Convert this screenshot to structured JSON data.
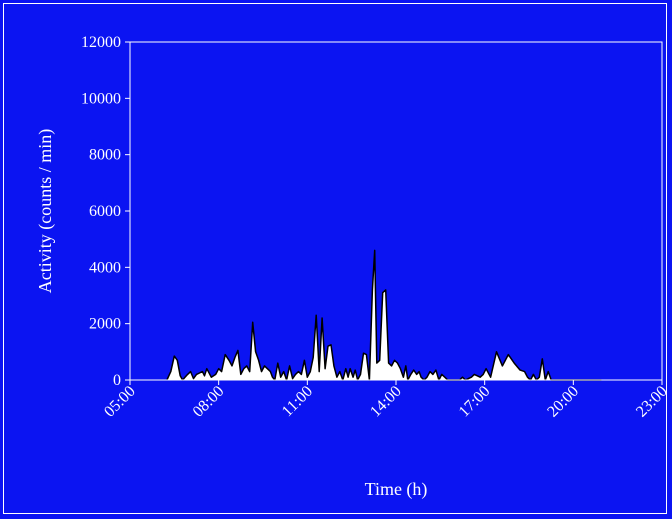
{
  "colors": {
    "background": "#0b14f2",
    "plot_area": "#0b14f2",
    "axis": "#ffffff",
    "fill": "#ffffff",
    "line": "#000000"
  },
  "chart_data": {
    "type": "area",
    "title": "",
    "xlabel": "Time (h)",
    "ylabel": "Activity  (counts / min)",
    "x_tick_labels": [
      "05:00",
      "08:00",
      "11:00",
      "14:00",
      "17:00",
      "20:00",
      "23:00"
    ],
    "x_tick_hours": [
      5,
      8,
      11,
      14,
      17,
      20,
      23
    ],
    "xlim": [
      5,
      23
    ],
    "ylim": [
      0,
      12000
    ],
    "y_ticks": [
      0,
      2000,
      4000,
      6000,
      8000,
      10000,
      12000
    ],
    "y_tick_labels": [
      "0",
      "2000",
      "4000",
      "6000",
      "8000",
      "10000",
      "12000"
    ],
    "grid": false,
    "legend": "none",
    "series": [
      {
        "x": [
          6.25,
          6.38,
          6.5,
          6.6,
          6.7,
          6.78,
          6.86,
          6.95,
          7.05,
          7.15,
          7.25,
          7.35,
          7.45,
          7.52,
          7.6,
          7.75,
          7.9,
          8.0,
          8.1,
          8.22,
          8.35,
          8.45,
          8.55,
          8.65,
          8.75,
          8.85,
          8.95,
          9.05,
          9.15,
          9.25,
          9.35,
          9.45,
          9.55,
          9.65,
          9.75,
          9.82,
          9.9,
          10.0,
          10.1,
          10.2,
          10.3,
          10.4,
          10.5,
          10.6,
          10.7,
          10.8,
          10.9,
          11.0,
          11.1,
          11.2,
          11.3,
          11.4,
          11.5,
          11.6,
          11.7,
          11.8,
          11.9,
          12.0,
          12.1,
          12.2,
          12.3,
          12.38,
          12.45,
          12.55,
          12.62,
          12.7,
          12.8,
          12.9,
          13.0,
          13.1,
          13.2,
          13.28,
          13.35,
          13.45,
          13.55,
          13.65,
          13.75,
          13.85,
          13.95,
          14.05,
          14.15,
          14.25,
          14.33,
          14.4,
          14.5,
          14.6,
          14.7,
          14.78,
          14.85,
          14.95,
          15.05,
          15.15,
          15.25,
          15.35,
          15.45,
          15.55,
          15.65,
          15.75,
          15.85,
          15.95,
          16.05,
          16.15,
          16.25,
          16.35,
          16.45,
          16.55,
          16.65,
          16.75,
          16.85,
          16.95,
          17.05,
          17.2,
          17.4,
          17.6,
          17.8,
          18.0,
          18.2,
          18.35,
          18.45,
          18.55,
          18.65,
          18.75,
          18.85,
          18.95,
          19.05,
          19.15,
          19.25,
          19.35,
          19.45,
          19.55,
          19.65,
          19.75,
          19.85,
          19.95,
          20.05,
          20.15,
          20.25,
          20.35,
          20.45,
          20.55,
          20.65,
          20.75,
          20.85,
          20.95
        ],
        "y": [
          0,
          300,
          850,
          700,
          150,
          0,
          100,
          200,
          300,
          50,
          200,
          250,
          300,
          150,
          400,
          100,
          200,
          400,
          300,
          900,
          700,
          500,
          800,
          1050,
          200,
          400,
          500,
          300,
          2050,
          1000,
          700,
          300,
          500,
          400,
          300,
          100,
          0,
          600,
          100,
          300,
          0,
          500,
          50,
          200,
          300,
          200,
          700,
          100,
          300,
          800,
          2300,
          300,
          2200,
          400,
          1200,
          1250,
          500,
          100,
          300,
          0,
          400,
          100,
          400,
          100,
          350,
          0,
          200,
          950,
          900,
          0,
          3200,
          4600,
          600,
          700,
          3100,
          3200,
          600,
          500,
          700,
          600,
          400,
          100,
          500,
          0,
          200,
          350,
          200,
          300,
          100,
          0,
          100,
          300,
          200,
          350,
          0,
          200,
          100,
          0,
          0,
          0,
          0,
          0,
          100,
          0,
          50,
          100,
          200,
          150,
          100,
          200,
          400,
          100,
          1000,
          500,
          900,
          600,
          350,
          300,
          100,
          0,
          200,
          0,
          100,
          750,
          0,
          300,
          0,
          0,
          0,
          0,
          0,
          0,
          0,
          0,
          0,
          0,
          0,
          0,
          0,
          0,
          0,
          0,
          0,
          0
        ]
      }
    ]
  }
}
